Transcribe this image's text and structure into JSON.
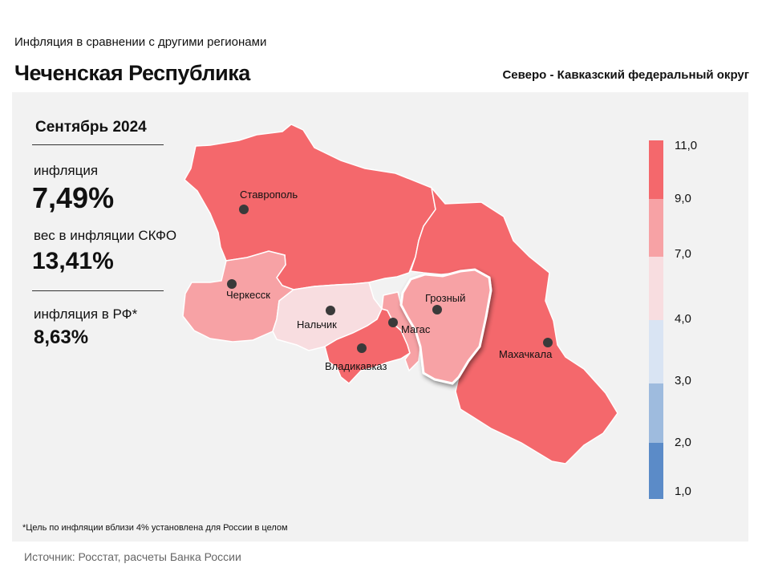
{
  "header": {
    "subtitle": "Инфляция  в сравнении  с другими  регионами",
    "title": "Чеченская Республика",
    "district": "Северо - Кавказский федеральный округ"
  },
  "stats": {
    "period": "Сентябрь 2024",
    "inflation_label": "инфляция",
    "inflation_value": "7,49%",
    "weight_label": "вес в инфляции  СКФО",
    "weight_value": "13,41%",
    "rf_label": "инфляция  в РФ*",
    "rf_value": "8,63%"
  },
  "legend": {
    "ticks": [
      "11,0",
      "9,0",
      "7,0",
      "4,0",
      "3,0",
      "2,0",
      "1,0"
    ],
    "bands": [
      {
        "from": 9.0,
        "to": 11.0,
        "color": "#f4686c"
      },
      {
        "from": 7.0,
        "to": 9.0,
        "color": "#f7a2a5"
      },
      {
        "from": 4.0,
        "to": 7.0,
        "color": "#f8dde0"
      },
      {
        "from": 3.0,
        "to": 4.0,
        "color": "#d9e4f3"
      },
      {
        "from": 2.0,
        "to": 3.0,
        "color": "#9ebbde"
      },
      {
        "from": 1.0,
        "to": 2.0,
        "color": "#5b8bc8"
      }
    ]
  },
  "regions": [
    {
      "name": "stavropol",
      "city": "Ставрополь",
      "color": "#f4686c"
    },
    {
      "name": "karachay-cherkessia",
      "city": "Черкесск",
      "color": "#f7a2a5"
    },
    {
      "name": "kabardino-balkaria",
      "city": "Нальчик",
      "color": "#f8dde0"
    },
    {
      "name": "north-ossetia",
      "city": "Владикавказ",
      "color": "#f4686c"
    },
    {
      "name": "ingushetia",
      "city": "Магас",
      "color": "#f7a2a5"
    },
    {
      "name": "chechnya",
      "city": "Грозный",
      "color": "#f7a2a5"
    },
    {
      "name": "dagestan",
      "city": "Махачкала",
      "color": "#f4686c"
    }
  ],
  "footnote": "*Цель по инфляции вблизи 4% установлена для России в целом",
  "source": "Источник: Росстат, расчеты Банка России"
}
